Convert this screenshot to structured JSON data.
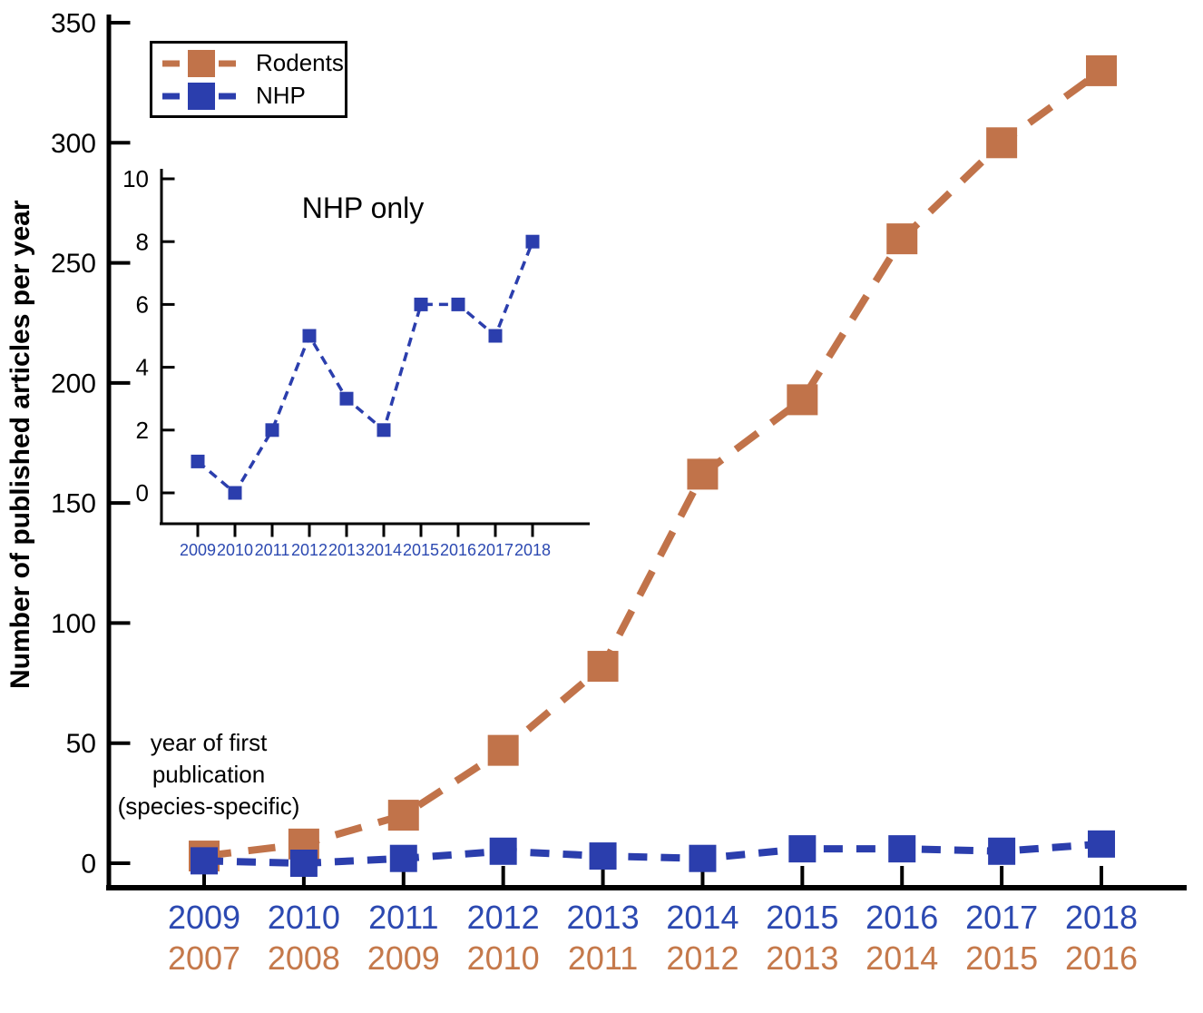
{
  "figure": {
    "ylabel": "Number of published articles per year",
    "inset_title": "NHP only",
    "annotation": {
      "line1": "year of first",
      "line2": "publication",
      "line3": "(species-specific)"
    }
  },
  "legend": {
    "items": [
      {
        "label": "Rodents",
        "color": "#c1734a"
      },
      {
        "label": "NHP",
        "color": "#2b3ead"
      }
    ]
  },
  "colors": {
    "rodents": "#c1734a",
    "nhp": "#2b3ead",
    "rodent_year_labels": "#c5794b",
    "nhp_year_labels": "#2c49b1",
    "axis": "#000000"
  },
  "chart_data": [
    {
      "id": "main",
      "type": "line",
      "title": "",
      "ylabel": "Number of published articles per year",
      "ylim": [
        0,
        350
      ],
      "yticks": [
        0,
        50,
        100,
        150,
        200,
        250,
        300,
        350
      ],
      "grid": false,
      "legend_position": "top-left",
      "x_axis_note": "year of first publication (species-specific)",
      "x_axis_rows": [
        {
          "series": "NHP",
          "color": "#2c49b1",
          "labels": [
            "2009",
            "2010",
            "2011",
            "2012",
            "2013",
            "2014",
            "2015",
            "2016",
            "2017",
            "2018"
          ]
        },
        {
          "series": "Rodents",
          "color": "#c5794b",
          "labels": [
            "2007",
            "2008",
            "2009",
            "2010",
            "2011",
            "2012",
            "2013",
            "2014",
            "2015",
            "2016"
          ]
        }
      ],
      "series": [
        {
          "name": "Rodents",
          "color": "#c1734a",
          "linestyle": "dashed",
          "marker": "square",
          "values": [
            3,
            8,
            20,
            47,
            82,
            162,
            193,
            260,
            300,
            330
          ]
        },
        {
          "name": "NHP",
          "color": "#2b3ead",
          "linestyle": "dashed",
          "marker": "square",
          "values": [
            1,
            0,
            2,
            5,
            3,
            2,
            6,
            6,
            5,
            8
          ]
        }
      ]
    },
    {
      "id": "inset",
      "type": "line",
      "title": "NHP only",
      "ylim": [
        0,
        10
      ],
      "yticks": [
        0,
        2,
        4,
        6,
        8,
        10
      ],
      "grid": false,
      "x_axis_rows": [
        {
          "series": "NHP",
          "color": "#2c49b1",
          "labels": [
            "2009",
            "2010",
            "2011",
            "2012",
            "2013",
            "2014",
            "2015",
            "2016",
            "2017",
            "2018"
          ]
        }
      ],
      "series": [
        {
          "name": "NHP",
          "color": "#2b3ead",
          "linestyle": "dashed",
          "marker": "square",
          "values": [
            1,
            0,
            2,
            5,
            3,
            2,
            6,
            6,
            5,
            8
          ]
        }
      ]
    }
  ]
}
